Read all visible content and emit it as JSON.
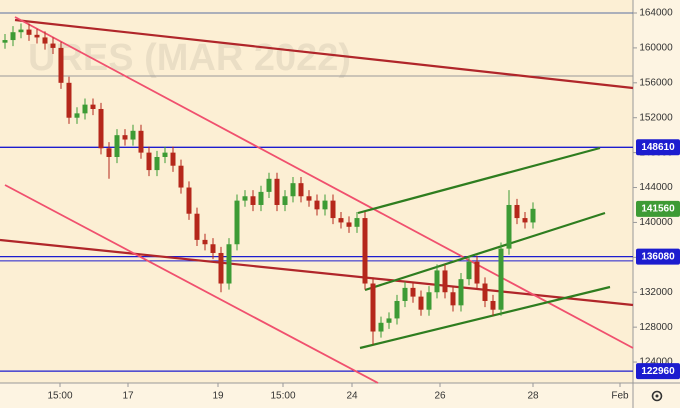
{
  "chart_data": {
    "type": "candlestick",
    "watermark": "URES (MAR 2022)",
    "open": [
      160600,
      160900,
      161800,
      162100,
      161500,
      161200,
      160500,
      160000,
      156000,
      152000,
      152500,
      153500,
      153000,
      148500,
      147500,
      150000,
      149500,
      150500,
      148000,
      146000,
      147500,
      148000,
      146500,
      144000,
      141000,
      138000,
      137500,
      136500,
      133000,
      137500,
      142500,
      143000,
      142000,
      143500,
      145000,
      142000,
      143000,
      144500,
      143000,
      142500,
      141500,
      142500,
      140500,
      140000,
      139500,
      140500,
      133000,
      127500,
      128500,
      129000,
      131000,
      132500,
      131500,
      130000,
      132000,
      134500,
      132000,
      130500,
      133500,
      135500,
      133000,
      131000,
      130000,
      137000,
      142000,
      140500,
      140000
    ],
    "high": [
      161600,
      162500,
      162800,
      162800,
      162200,
      161900,
      161200,
      160700,
      156700,
      153200,
      154200,
      154200,
      153700,
      149200,
      150700,
      150700,
      151200,
      151200,
      148700,
      148200,
      148700,
      148700,
      147200,
      144700,
      141700,
      138700,
      138200,
      137200,
      138200,
      143200,
      143700,
      143700,
      144200,
      145700,
      145700,
      143700,
      145200,
      145200,
      143700,
      143200,
      143200,
      143200,
      141200,
      140700,
      141200,
      141200,
      133700,
      129200,
      129700,
      131700,
      133200,
      133200,
      132200,
      132700,
      135200,
      135200,
      132700,
      134200,
      136200,
      136200,
      133700,
      131700,
      137700,
      143700,
      142700,
      141200,
      142300
    ],
    "low": [
      159900,
      160200,
      161100,
      160800,
      160500,
      159800,
      159300,
      155300,
      151300,
      151300,
      151800,
      152300,
      147800,
      145000,
      146800,
      148800,
      148800,
      147300,
      145300,
      145300,
      146800,
      145800,
      143300,
      140300,
      137300,
      136800,
      135800,
      132000,
      132300,
      136800,
      141800,
      141300,
      141300,
      142800,
      141300,
      141300,
      142300,
      142300,
      141800,
      140800,
      140800,
      139800,
      139300,
      138800,
      138800,
      132300,
      126000,
      126800,
      127800,
      128300,
      130300,
      130800,
      129300,
      129300,
      131300,
      131300,
      129800,
      129800,
      132800,
      132300,
      130300,
      129300,
      129300,
      136300,
      139800,
      139300,
      139300
    ],
    "close": [
      160900,
      161800,
      162100,
      161500,
      161200,
      160500,
      160000,
      156000,
      152000,
      152500,
      153500,
      153000,
      148500,
      147500,
      150000,
      149500,
      150500,
      148000,
      146000,
      147500,
      148000,
      146500,
      144000,
      141000,
      138000,
      137500,
      136500,
      133000,
      137500,
      142500,
      143000,
      142000,
      143500,
      145000,
      142000,
      143000,
      144500,
      143000,
      142500,
      141500,
      142500,
      140500,
      140000,
      139500,
      140500,
      133000,
      127500,
      128500,
      129000,
      131000,
      132500,
      131500,
      130000,
      132000,
      134500,
      132000,
      130500,
      133500,
      135500,
      133000,
      131000,
      130000,
      137000,
      142000,
      140500,
      140000,
      141560
    ],
    "up_color": "#3d9b35",
    "down_color": "#b5271b",
    "ylim": [
      121600,
      165490
    ],
    "yticks": [
      124000,
      128000,
      132000,
      136000,
      140000,
      144000,
      148000,
      152000,
      156000,
      160000,
      164000
    ],
    "xlim": [
      -0.625,
      78.5
    ],
    "xticks": [
      {
        "value": 6.875,
        "label": "15:00"
      },
      {
        "value": 15.375,
        "label": "17"
      },
      {
        "value": 26.625,
        "label": "19"
      },
      {
        "value": 34.75,
        "label": "15:00"
      },
      {
        "value": 43.375,
        "label": "24"
      },
      {
        "value": 54.375,
        "label": "26"
      },
      {
        "value": 66,
        "label": "28"
      },
      {
        "value": 76.875,
        "label": "Feb"
      }
    ],
    "price_lines": [
      148610,
      136080,
      122960
    ],
    "price_line_color": "#1c1ccf",
    "lines": [
      {
        "value": 164000,
        "color": "#5a6fa0"
      },
      {
        "value": 156780,
        "color": "#9a9a9a"
      },
      {
        "value": 135600,
        "color": "#1c1ccf"
      }
    ]
  }
}
